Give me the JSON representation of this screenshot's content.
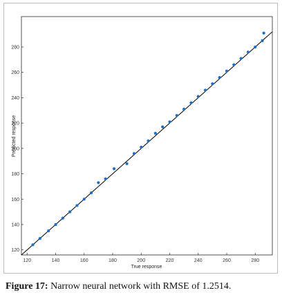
{
  "chart_data": {
    "type": "scatter",
    "xlabel": "True response",
    "ylabel": "Predicted response",
    "xlim": [
      116,
      292
    ],
    "ylim": [
      116,
      304
    ],
    "xticks": [
      120,
      140,
      160,
      180,
      200,
      220,
      240,
      260,
      280
    ],
    "yticks": [
      120,
      140,
      160,
      180,
      200,
      220,
      240,
      260,
      280
    ],
    "grid": false,
    "reference_line": {
      "from": [
        116,
        116
      ],
      "to": [
        292,
        292
      ]
    },
    "colors": {
      "points": "#1f6fc0",
      "line": "#000000",
      "frame": "#bdbdbd"
    },
    "points": [
      {
        "x": 124,
        "y": 124
      },
      {
        "x": 129,
        "y": 129
      },
      {
        "x": 135,
        "y": 135
      },
      {
        "x": 140,
        "y": 140
      },
      {
        "x": 145,
        "y": 145
      },
      {
        "x": 150,
        "y": 150
      },
      {
        "x": 155,
        "y": 155
      },
      {
        "x": 160,
        "y": 160
      },
      {
        "x": 165,
        "y": 165
      },
      {
        "x": 170,
        "y": 173
      },
      {
        "x": 175,
        "y": 176
      },
      {
        "x": 181,
        "y": 184
      },
      {
        "x": 190,
        "y": 188
      },
      {
        "x": 195,
        "y": 196
      },
      {
        "x": 200,
        "y": 201
      },
      {
        "x": 205,
        "y": 206
      },
      {
        "x": 210,
        "y": 212
      },
      {
        "x": 215,
        "y": 217
      },
      {
        "x": 220,
        "y": 221
      },
      {
        "x": 225,
        "y": 226
      },
      {
        "x": 230,
        "y": 231
      },
      {
        "x": 235,
        "y": 236
      },
      {
        "x": 240,
        "y": 241
      },
      {
        "x": 245,
        "y": 246
      },
      {
        "x": 250,
        "y": 251
      },
      {
        "x": 255,
        "y": 256
      },
      {
        "x": 260,
        "y": 261
      },
      {
        "x": 265,
        "y": 266
      },
      {
        "x": 270,
        "y": 271
      },
      {
        "x": 275,
        "y": 276
      },
      {
        "x": 280,
        "y": 280
      },
      {
        "x": 285,
        "y": 285
      },
      {
        "x": 286,
        "y": 291
      }
    ]
  },
  "caption": {
    "label": "Figure 17:",
    "text": "Narrow neural network with RMSE of 1.2514."
  }
}
